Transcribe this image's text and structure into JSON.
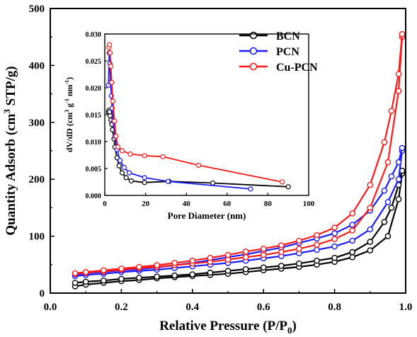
{
  "chart_data": [
    {
      "type": "line",
      "xlabel": "Relative Pressure (P/P",
      "xlabel_sub": "0",
      "xlabel_end": ")",
      "ylabel": "Quantity Adsorb (cm",
      "ylabel_sup": "3",
      "ylabel_end": " STP/g)",
      "xlim": [
        0.0,
        1.0
      ],
      "ylim": [
        0,
        500
      ],
      "xticks": [
        "0.0",
        "0.2",
        "0.4",
        "0.6",
        "0.8",
        "1.0"
      ],
      "yticks": [
        "0",
        "100",
        "200",
        "300",
        "400",
        "500"
      ],
      "legend_position": "top-right",
      "series": [
        {
          "name": "BCN",
          "color": "#000000",
          "adsorption": [
            [
              0.07,
              12
            ],
            [
              0.1,
              15
            ],
            [
              0.15,
              18
            ],
            [
              0.2,
              21
            ],
            [
              0.25,
              23
            ],
            [
              0.3,
              26
            ],
            [
              0.35,
              28
            ],
            [
              0.4,
              30
            ],
            [
              0.45,
              32
            ],
            [
              0.5,
              34
            ],
            [
              0.55,
              37
            ],
            [
              0.6,
              40
            ],
            [
              0.65,
              43
            ],
            [
              0.7,
              46
            ],
            [
              0.75,
              50
            ],
            [
              0.8,
              55
            ],
            [
              0.85,
              63
            ],
            [
              0.9,
              75
            ],
            [
              0.95,
              100
            ],
            [
              0.98,
              165
            ],
            [
              0.99,
              210
            ]
          ],
          "desorption": [
            [
              0.99,
              215
            ],
            [
              0.98,
              190
            ],
            [
              0.96,
              150
            ],
            [
              0.94,
              125
            ],
            [
              0.9,
              90
            ],
            [
              0.85,
              72
            ],
            [
              0.8,
              62
            ],
            [
              0.75,
              57
            ],
            [
              0.7,
              52
            ],
            [
              0.65,
              48
            ],
            [
              0.6,
              45
            ],
            [
              0.55,
              42
            ],
            [
              0.5,
              39
            ],
            [
              0.45,
              36
            ],
            [
              0.4,
              33
            ],
            [
              0.35,
              31
            ],
            [
              0.3,
              29
            ],
            [
              0.25,
              27
            ],
            [
              0.2,
              25
            ],
            [
              0.15,
              22
            ],
            [
              0.1,
              20
            ],
            [
              0.07,
              18
            ]
          ]
        },
        {
          "name": "PCN",
          "color": "#1a1aff",
          "adsorption": [
            [
              0.07,
              30
            ],
            [
              0.1,
              32
            ],
            [
              0.15,
              34
            ],
            [
              0.2,
              37
            ],
            [
              0.25,
              39
            ],
            [
              0.3,
              41
            ],
            [
              0.35,
              44
            ],
            [
              0.4,
              47
            ],
            [
              0.45,
              50
            ],
            [
              0.5,
              53
            ],
            [
              0.55,
              57
            ],
            [
              0.6,
              61
            ],
            [
              0.65,
              65
            ],
            [
              0.7,
              70
            ],
            [
              0.75,
              76
            ],
            [
              0.8,
              82
            ],
            [
              0.85,
              92
            ],
            [
              0.9,
              112
            ],
            [
              0.95,
              160
            ],
            [
              0.98,
              200
            ],
            [
              0.99,
              250
            ]
          ],
          "desorption": [
            [
              0.99,
              255
            ],
            [
              0.98,
              230
            ],
            [
              0.96,
              205
            ],
            [
              0.94,
              180
            ],
            [
              0.9,
              145
            ],
            [
              0.85,
              120
            ],
            [
              0.8,
              105
            ],
            [
              0.75,
              96
            ],
            [
              0.7,
              88
            ],
            [
              0.65,
              80
            ],
            [
              0.6,
              74
            ],
            [
              0.55,
              68
            ],
            [
              0.5,
              63
            ],
            [
              0.45,
              58
            ],
            [
              0.4,
              53
            ],
            [
              0.35,
              49
            ],
            [
              0.3,
              45
            ],
            [
              0.25,
              42
            ],
            [
              0.2,
              40
            ],
            [
              0.15,
              37
            ],
            [
              0.1,
              35
            ],
            [
              0.07,
              33
            ]
          ]
        },
        {
          "name": "Cu-PCN",
          "color": "#ff1a1a",
          "adsorption": [
            [
              0.07,
              34
            ],
            [
              0.1,
              36
            ],
            [
              0.15,
              38
            ],
            [
              0.2,
              41
            ],
            [
              0.25,
              44
            ],
            [
              0.3,
              46
            ],
            [
              0.35,
              49
            ],
            [
              0.4,
              52
            ],
            [
              0.45,
              55
            ],
            [
              0.5,
              59
            ],
            [
              0.55,
              63
            ],
            [
              0.6,
              67
            ],
            [
              0.65,
              72
            ],
            [
              0.7,
              78
            ],
            [
              0.75,
              85
            ],
            [
              0.8,
              95
            ],
            [
              0.85,
              110
            ],
            [
              0.9,
              150
            ],
            [
              0.95,
              230
            ],
            [
              0.98,
              355
            ],
            [
              0.99,
              450
            ]
          ],
          "desorption": [
            [
              0.99,
              455
            ],
            [
              0.98,
              385
            ],
            [
              0.96,
              320
            ],
            [
              0.94,
              265
            ],
            [
              0.9,
              190
            ],
            [
              0.85,
              140
            ],
            [
              0.8,
              115
            ],
            [
              0.75,
              102
            ],
            [
              0.7,
              92
            ],
            [
              0.65,
              84
            ],
            [
              0.6,
              78
            ],
            [
              0.55,
              73
            ],
            [
              0.5,
              67
            ],
            [
              0.45,
              62
            ],
            [
              0.4,
              57
            ],
            [
              0.35,
              53
            ],
            [
              0.3,
              49
            ],
            [
              0.25,
              46
            ],
            [
              0.2,
              43
            ],
            [
              0.15,
              40
            ],
            [
              0.1,
              37
            ],
            [
              0.07,
              35
            ]
          ]
        }
      ]
    },
    {
      "type": "line",
      "xlabel": "Pore Diameter (nm)",
      "ylabel": "dV/dD (cm",
      "ylabel_sup": "3",
      "ylabel_mid": " g",
      "ylabel_sup2": "-1",
      "ylabel_mid2": " nm",
      "ylabel_sup3": "-1",
      "ylabel_end": ")",
      "xlim": [
        0,
        100
      ],
      "ylim": [
        0.0,
        0.03
      ],
      "xticks": [
        "0",
        "20",
        "40",
        "60",
        "80",
        "100"
      ],
      "yticks": [
        "0.000",
        "0.005",
        "0.010",
        "0.015",
        "0.020",
        "0.025",
        "0.030"
      ],
      "series": [
        {
          "name": "BCN",
          "color": "#000000",
          "points": [
            [
              1.8,
              0.0155
            ],
            [
              2.0,
              0.0158
            ],
            [
              2.3,
              0.0155
            ],
            [
              2.6,
              0.0148
            ],
            [
              3.0,
              0.014
            ],
            [
              3.4,
              0.0132
            ],
            [
              3.8,
              0.0122
            ],
            [
              4.5,
              0.0105
            ],
            [
              5.0,
              0.009
            ],
            [
              6.0,
              0.007
            ],
            [
              7.0,
              0.0055
            ],
            [
              8.5,
              0.0042
            ],
            [
              10.5,
              0.0033
            ],
            [
              13.0,
              0.0027
            ],
            [
              19.5,
              0.0024
            ],
            [
              31.5,
              0.0026
            ],
            [
              53.0,
              0.0023
            ],
            [
              90.0,
              0.0016
            ]
          ]
        },
        {
          "name": "PCN",
          "color": "#1a1aff",
          "points": [
            [
              1.8,
              0.0205
            ],
            [
              2.2,
              0.0265
            ],
            [
              2.5,
              0.0245
            ],
            [
              2.8,
              0.021
            ],
            [
              3.2,
              0.0185
            ],
            [
              3.6,
              0.0162
            ],
            [
              4.2,
              0.0138
            ],
            [
              5.0,
              0.011
            ],
            [
              6.0,
              0.0085
            ],
            [
              7.5,
              0.0065
            ],
            [
              9.5,
              0.0052
            ],
            [
              12.0,
              0.0042
            ],
            [
              19.5,
              0.0033
            ],
            [
              31.0,
              0.0026
            ],
            [
              71.5,
              0.0012
            ]
          ]
        },
        {
          "name": "Cu-PCN",
          "color": "#ff1a1a",
          "points": [
            [
              2.0,
              0.0275
            ],
            [
              2.3,
              0.028
            ],
            [
              2.6,
              0.0265
            ],
            [
              3.0,
              0.024
            ],
            [
              3.4,
              0.021
            ],
            [
              4.0,
              0.0175
            ],
            [
              4.8,
              0.0138
            ],
            [
              5.5,
              0.011
            ],
            [
              6.5,
              0.009
            ],
            [
              8.5,
              0.0083
            ],
            [
              12.5,
              0.0077
            ],
            [
              19.5,
              0.0074
            ],
            [
              28.5,
              0.0072
            ],
            [
              46.0,
              0.0056
            ],
            [
              87.0,
              0.0025
            ]
          ]
        }
      ]
    }
  ]
}
